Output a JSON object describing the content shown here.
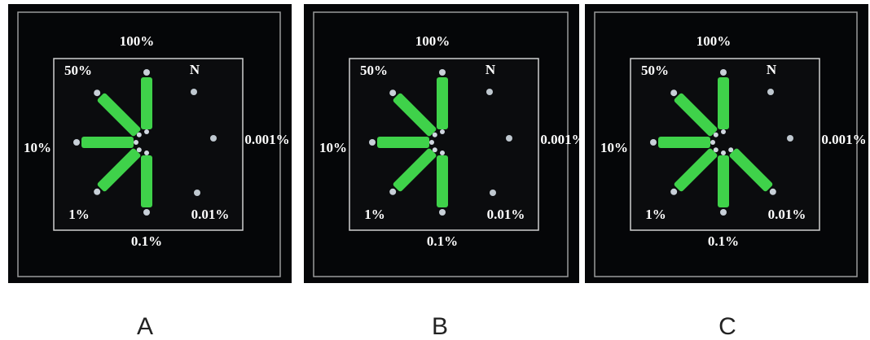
{
  "panels": [
    {
      "letter": "A",
      "labels": {
        "p100": "100%",
        "p50": "50%",
        "n": "N",
        "p10": "10%",
        "p0001": "0.001%",
        "p1": "1%",
        "p001": "0.01%",
        "p01": "0.1%"
      }
    },
    {
      "letter": "B",
      "labels": {
        "p100": "100%",
        "p50": "50%",
        "n": "N",
        "p10": "10%",
        "p0001": "0.001%",
        "p1": "1%",
        "p001": "0.01%",
        "p01": "0.1%"
      }
    },
    {
      "letter": "C",
      "labels": {
        "p100": "100%",
        "p50": "50%",
        "n": "N",
        "p10": "10%",
        "p0001": "0.001%",
        "p1": "1%",
        "p001": "0.01%",
        "p01": "0.1%"
      }
    }
  ]
}
